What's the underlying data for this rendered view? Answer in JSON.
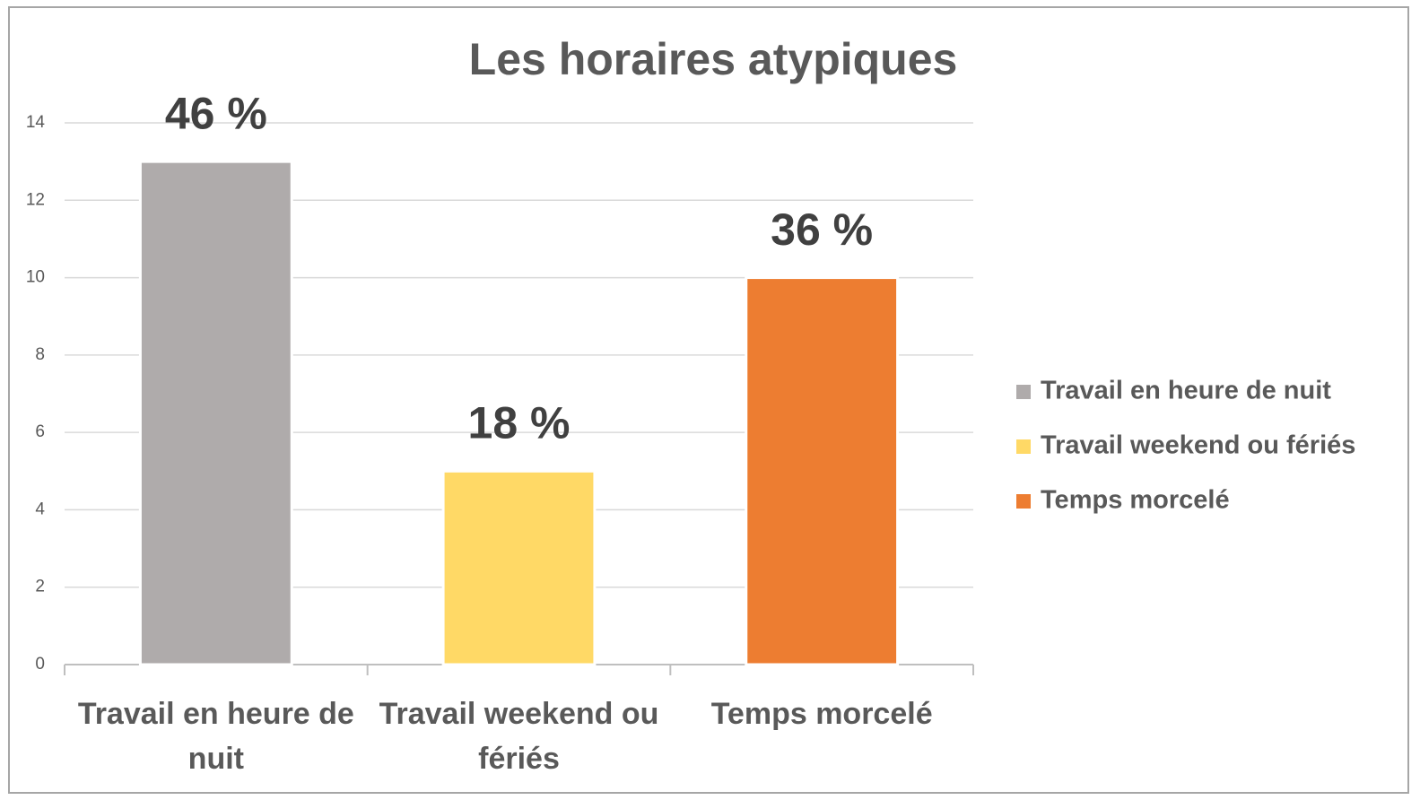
{
  "chart_data": {
    "type": "bar",
    "title": "Les horaires atypiques",
    "categories": [
      "Travail en heure de nuit",
      "Travail weekend ou fériés",
      "Temps morcelé"
    ],
    "values": [
      13,
      5,
      10
    ],
    "annotations": [
      "46 %",
      "18 %",
      "36 %"
    ],
    "colors": [
      "#afabab",
      "#ffd966",
      "#ed7d31"
    ],
    "ylim": [
      0,
      14
    ],
    "yticks": [
      0,
      2,
      4,
      6,
      8,
      10,
      12,
      14
    ],
    "grid": true,
    "legend": "right"
  }
}
